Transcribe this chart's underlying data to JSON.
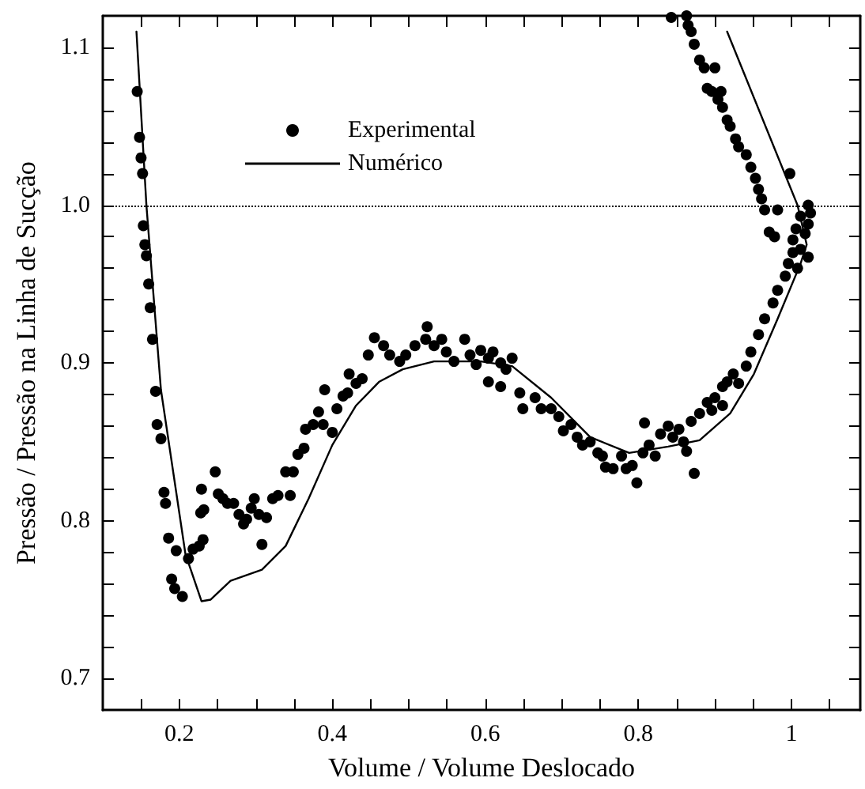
{
  "chart_data": {
    "type": "scatter",
    "xlabel": "Volume / Volume Deslocado",
    "ylabel": "Pressão / Pressão na Linha de Sucção",
    "xlim": [
      0.1,
      1.09
    ],
    "ylim": [
      0.68,
      1.12
    ],
    "xticks": [
      {
        "value": 0.15,
        "label": null
      },
      0.2,
      {
        "value": 0.25,
        "label": null
      },
      {
        "value": 0.3,
        "label": null
      },
      {
        "value": 0.35,
        "label": null
      },
      0.4,
      {
        "value": 0.45,
        "label": null
      },
      {
        "value": 0.5,
        "label": null
      },
      {
        "value": 0.55,
        "label": null
      },
      0.6,
      {
        "value": 0.65,
        "label": null
      },
      {
        "value": 0.7,
        "label": null
      },
      {
        "value": 0.75,
        "label": null
      },
      0.8,
      {
        "value": 0.85,
        "label": null
      },
      {
        "value": 0.9,
        "label": null
      },
      {
        "value": 0.95,
        "label": null
      },
      1,
      {
        "value": 1.05,
        "label": null
      }
    ],
    "yticks": [
      {
        "value": 0.7,
        "label": "0.7"
      },
      {
        "value": 0.72,
        "label": null
      },
      {
        "value": 0.74,
        "label": null
      },
      {
        "value": 0.76,
        "label": null
      },
      {
        "value": 0.78,
        "label": null
      },
      {
        "value": 0.8,
        "label": "0.8"
      },
      {
        "value": 0.82,
        "label": null
      },
      {
        "value": 0.84,
        "label": null
      },
      {
        "value": 0.86,
        "label": null
      },
      {
        "value": 0.88,
        "label": null
      },
      {
        "value": 0.9,
        "label": "0.9"
      },
      {
        "value": 0.92,
        "label": null
      },
      {
        "value": 0.94,
        "label": null
      },
      {
        "value": 0.96,
        "label": null
      },
      {
        "value": 0.98,
        "label": null
      },
      {
        "value": 1,
        "label": "1.0"
      },
      {
        "value": 1.02,
        "label": null
      },
      {
        "value": 1.04,
        "label": null
      },
      {
        "value": 1.06,
        "label": null
      },
      {
        "value": 1.08,
        "label": null
      },
      {
        "value": 1.1,
        "label": "1.1"
      }
    ],
    "grid": false,
    "legend": "top",
    "ref_lines": [
      {
        "axis": "y",
        "value": 1,
        "line_style": "dotted",
        "color": "#000000"
      }
    ],
    "series": [
      {
        "name": "Experimental",
        "type": "scatter",
        "marker": "circle",
        "color": "#000000",
        "x": [
          0.145,
          0.148,
          0.15,
          0.152,
          0.153,
          0.155,
          0.157,
          0.16,
          0.162,
          0.165,
          0.169,
          0.171,
          0.176,
          0.18,
          0.182,
          0.186,
          0.196,
          0.19,
          0.194,
          0.204,
          0.212,
          0.218,
          0.226,
          0.231,
          0.228,
          0.232,
          0.229,
          0.247,
          0.251,
          0.257,
          0.263,
          0.271,
          0.278,
          0.284,
          0.288,
          0.294,
          0.298,
          0.304,
          0.308,
          0.314,
          0.322,
          0.329,
          0.339,
          0.349,
          0.345,
          0.355,
          0.363,
          0.365,
          0.375,
          0.382,
          0.39,
          0.388,
          0.4,
          0.406,
          0.414,
          0.42,
          0.422,
          0.431,
          0.439,
          0.455,
          0.467,
          0.447,
          0.475,
          0.488,
          0.496,
          0.508,
          0.522,
          0.524,
          0.533,
          0.543,
          0.549,
          0.559,
          0.573,
          0.58,
          0.588,
          0.594,
          0.604,
          0.61,
          0.62,
          0.627,
          0.635,
          0.604,
          0.62,
          0.645,
          0.649,
          0.665,
          0.673,
          0.686,
          0.696,
          0.702,
          0.712,
          0.72,
          0.727,
          0.737,
          0.747,
          0.753,
          0.757,
          0.767,
          0.778,
          0.784,
          0.792,
          0.798,
          0.806,
          0.814,
          0.808,
          0.822,
          0.829,
          0.839,
          0.845,
          0.853,
          0.859,
          0.863,
          0.873,
          0.869,
          0.88,
          0.89,
          0.896,
          0.9,
          0.91,
          0.91,
          0.916,
          0.924,
          0.931,
          0.941,
          0.947,
          0.957,
          0.965,
          0.976,
          0.982,
          0.992,
          0.996,
          1.002,
          1.008,
          1.012,
          1.018,
          1.022,
          1.022,
          1.025,
          1.022,
          1.012,
          1.006,
          1.002,
          0.978,
          0.971,
          0.982,
          0.965,
          0.961,
          0.957,
          0.953,
          0.947,
          0.941,
          0.931,
          0.927,
          0.92,
          0.916,
          0.91,
          0.904,
          0.896,
          0.89,
          0.9,
          0.886,
          0.88,
          0.873,
          0.869,
          0.865,
          0.863,
          0.843,
          0.908,
          0.998
        ],
        "values": [
          1.072,
          1.043,
          1.03,
          1.02,
          0.987,
          0.975,
          0.968,
          0.95,
          0.935,
          0.915,
          0.882,
          0.861,
          0.852,
          0.818,
          0.811,
          0.789,
          0.781,
          0.763,
          0.757,
          0.752,
          0.776,
          0.782,
          0.784,
          0.788,
          0.805,
          0.807,
          0.82,
          0.831,
          0.817,
          0.814,
          0.811,
          0.811,
          0.804,
          0.798,
          0.801,
          0.808,
          0.814,
          0.804,
          0.785,
          0.802,
          0.814,
          0.816,
          0.831,
          0.831,
          0.816,
          0.842,
          0.846,
          0.858,
          0.861,
          0.869,
          0.883,
          0.861,
          0.856,
          0.871,
          0.879,
          0.881,
          0.893,
          0.887,
          0.89,
          0.916,
          0.911,
          0.905,
          0.905,
          0.901,
          0.905,
          0.911,
          0.915,
          0.923,
          0.911,
          0.915,
          0.907,
          0.901,
          0.915,
          0.905,
          0.899,
          0.908,
          0.903,
          0.907,
          0.9,
          0.896,
          0.903,
          0.888,
          0.885,
          0.881,
          0.871,
          0.878,
          0.871,
          0.871,
          0.866,
          0.857,
          0.861,
          0.853,
          0.848,
          0.85,
          0.843,
          0.841,
          0.834,
          0.833,
          0.841,
          0.833,
          0.835,
          0.824,
          0.843,
          0.848,
          0.862,
          0.841,
          0.855,
          0.86,
          0.853,
          0.858,
          0.85,
          0.844,
          0.83,
          0.863,
          0.868,
          0.875,
          0.87,
          0.878,
          0.885,
          0.873,
          0.888,
          0.893,
          0.887,
          0.898,
          0.907,
          0.918,
          0.928,
          0.938,
          0.946,
          0.955,
          0.963,
          0.97,
          0.96,
          0.972,
          0.982,
          0.967,
          0.988,
          0.995,
          1.0,
          0.993,
          0.985,
          0.978,
          0.98,
          0.983,
          0.997,
          0.997,
          1.004,
          1.01,
          1.017,
          1.024,
          1.032,
          1.037,
          1.042,
          1.05,
          1.054,
          1.062,
          1.067,
          1.072,
          1.074,
          1.087,
          1.087,
          1.092,
          1.102,
          1.11,
          1.114,
          1.12,
          1.119,
          1.072,
          1.02
        ]
      },
      {
        "name": "Numérico",
        "type": "line",
        "marker": "none",
        "line_style": "solid",
        "color": "#000000",
        "x": [
          0.916,
          1.008,
          1.02,
          1.012,
          0.982,
          0.951,
          0.92,
          0.88,
          0.839,
          0.788,
          0.737,
          0.686,
          0.635,
          0.594,
          0.533,
          0.492,
          0.461,
          0.431,
          0.4,
          0.369,
          0.339,
          0.308,
          0.267,
          0.241,
          0.229,
          0.208,
          0.176,
          0.157,
          0.144
        ],
        "values": [
          1.11,
          1.0,
          0.975,
          0.963,
          0.928,
          0.893,
          0.868,
          0.851,
          0.847,
          0.843,
          0.853,
          0.878,
          0.898,
          0.901,
          0.901,
          0.896,
          0.888,
          0.873,
          0.848,
          0.814,
          0.784,
          0.769,
          0.762,
          0.75,
          0.749,
          0.779,
          0.883,
          1.0,
          1.11
        ]
      }
    ]
  }
}
